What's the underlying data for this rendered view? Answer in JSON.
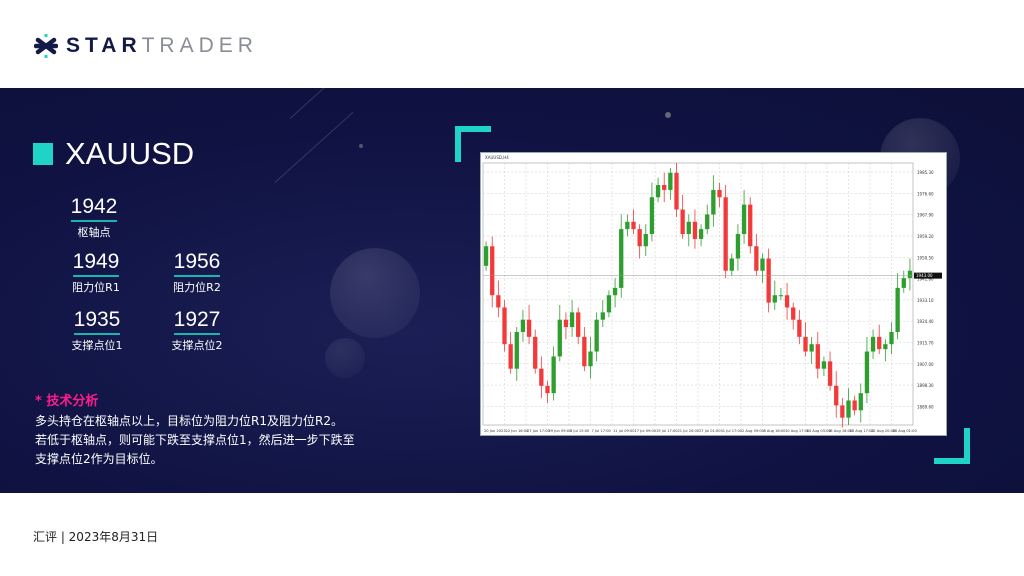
{
  "brand": {
    "name_bold": "STAR",
    "name_light": "TRADER"
  },
  "symbol": "XAUUSD",
  "levels": {
    "pivot": {
      "value": "1942",
      "label": "枢轴点"
    },
    "r1": {
      "value": "1949",
      "label": "阻力位R1"
    },
    "r2": {
      "value": "1956",
      "label": "阻力位R2"
    },
    "s1": {
      "value": "1935",
      "label": "支撑点位1"
    },
    "s2": {
      "value": "1927",
      "label": "支撑点位2"
    }
  },
  "analysis": {
    "heading": "* 技术分析",
    "lines": [
      "多头持仓在枢轴点以上，目标位为阻力位R1及阻力位R2。",
      "若低于枢轴点，则可能下跌至支撑点位1，然后进一步下跌至",
      "支撑点位2作为目标位。"
    ]
  },
  "footer": "汇评 | 2023年8月31日",
  "colors": {
    "navy": "#101343",
    "accent": "#1fd3c6",
    "pink": "#ff1b8d",
    "bull": "#2e9e2e",
    "bear": "#f23a3a"
  },
  "chart_data": {
    "type": "candlestick",
    "title": "XAUUSD,H4",
    "ylim": [
      1882,
      1989
    ],
    "current_price": 1943,
    "closes": [
      1955,
      1935,
      1930,
      1915,
      1905,
      1920,
      1925,
      1918,
      1905,
      1898,
      1895,
      1910,
      1925,
      1922,
      1928,
      1918,
      1906,
      1912,
      1925,
      1928,
      1935,
      1938,
      1962,
      1965,
      1962,
      1955,
      1960,
      1975,
      1980,
      1978,
      1985,
      1970,
      1960,
      1965,
      1958,
      1962,
      1968,
      1978,
      1975,
      1945,
      1950,
      1960,
      1972,
      1955,
      1945,
      1950,
      1932,
      1935,
      1935,
      1930,
      1925,
      1918,
      1912,
      1915,
      1905,
      1908,
      1898,
      1890,
      1885,
      1892,
      1888,
      1895,
      1912,
      1918,
      1913,
      1915,
      1920,
      1938,
      1942,
      1945
    ],
    "x_ticks": [
      "20 Jun 2023",
      "22 Jun 16:00",
      "27 Jun 17:00",
      "29 Jun 09:00",
      "3 Jul 15:00",
      "7 Jul 17:00",
      "11 Jul 09:00",
      "17 Jul 09:00",
      "19 Jul 17:00",
      "21 Jul 20:00",
      "27 Jul 01:00",
      "31 Jul 17:00",
      "2 Aug 09:00",
      "8 Aug 16:00",
      "10 Aug 17:00",
      "14 Aug 03:00",
      "16 Aug 16:00",
      "18 Aug 17:00",
      "22 Aug 20:00",
      "28 Aug 01:00"
    ],
    "y_ticks": [
      1985.3,
      1976.6,
      1967.9,
      1959.2,
      1950.5,
      1941.8,
      1933.1,
      1924.4,
      1915.7,
      1907.0,
      1898.3,
      1889.6
    ]
  }
}
